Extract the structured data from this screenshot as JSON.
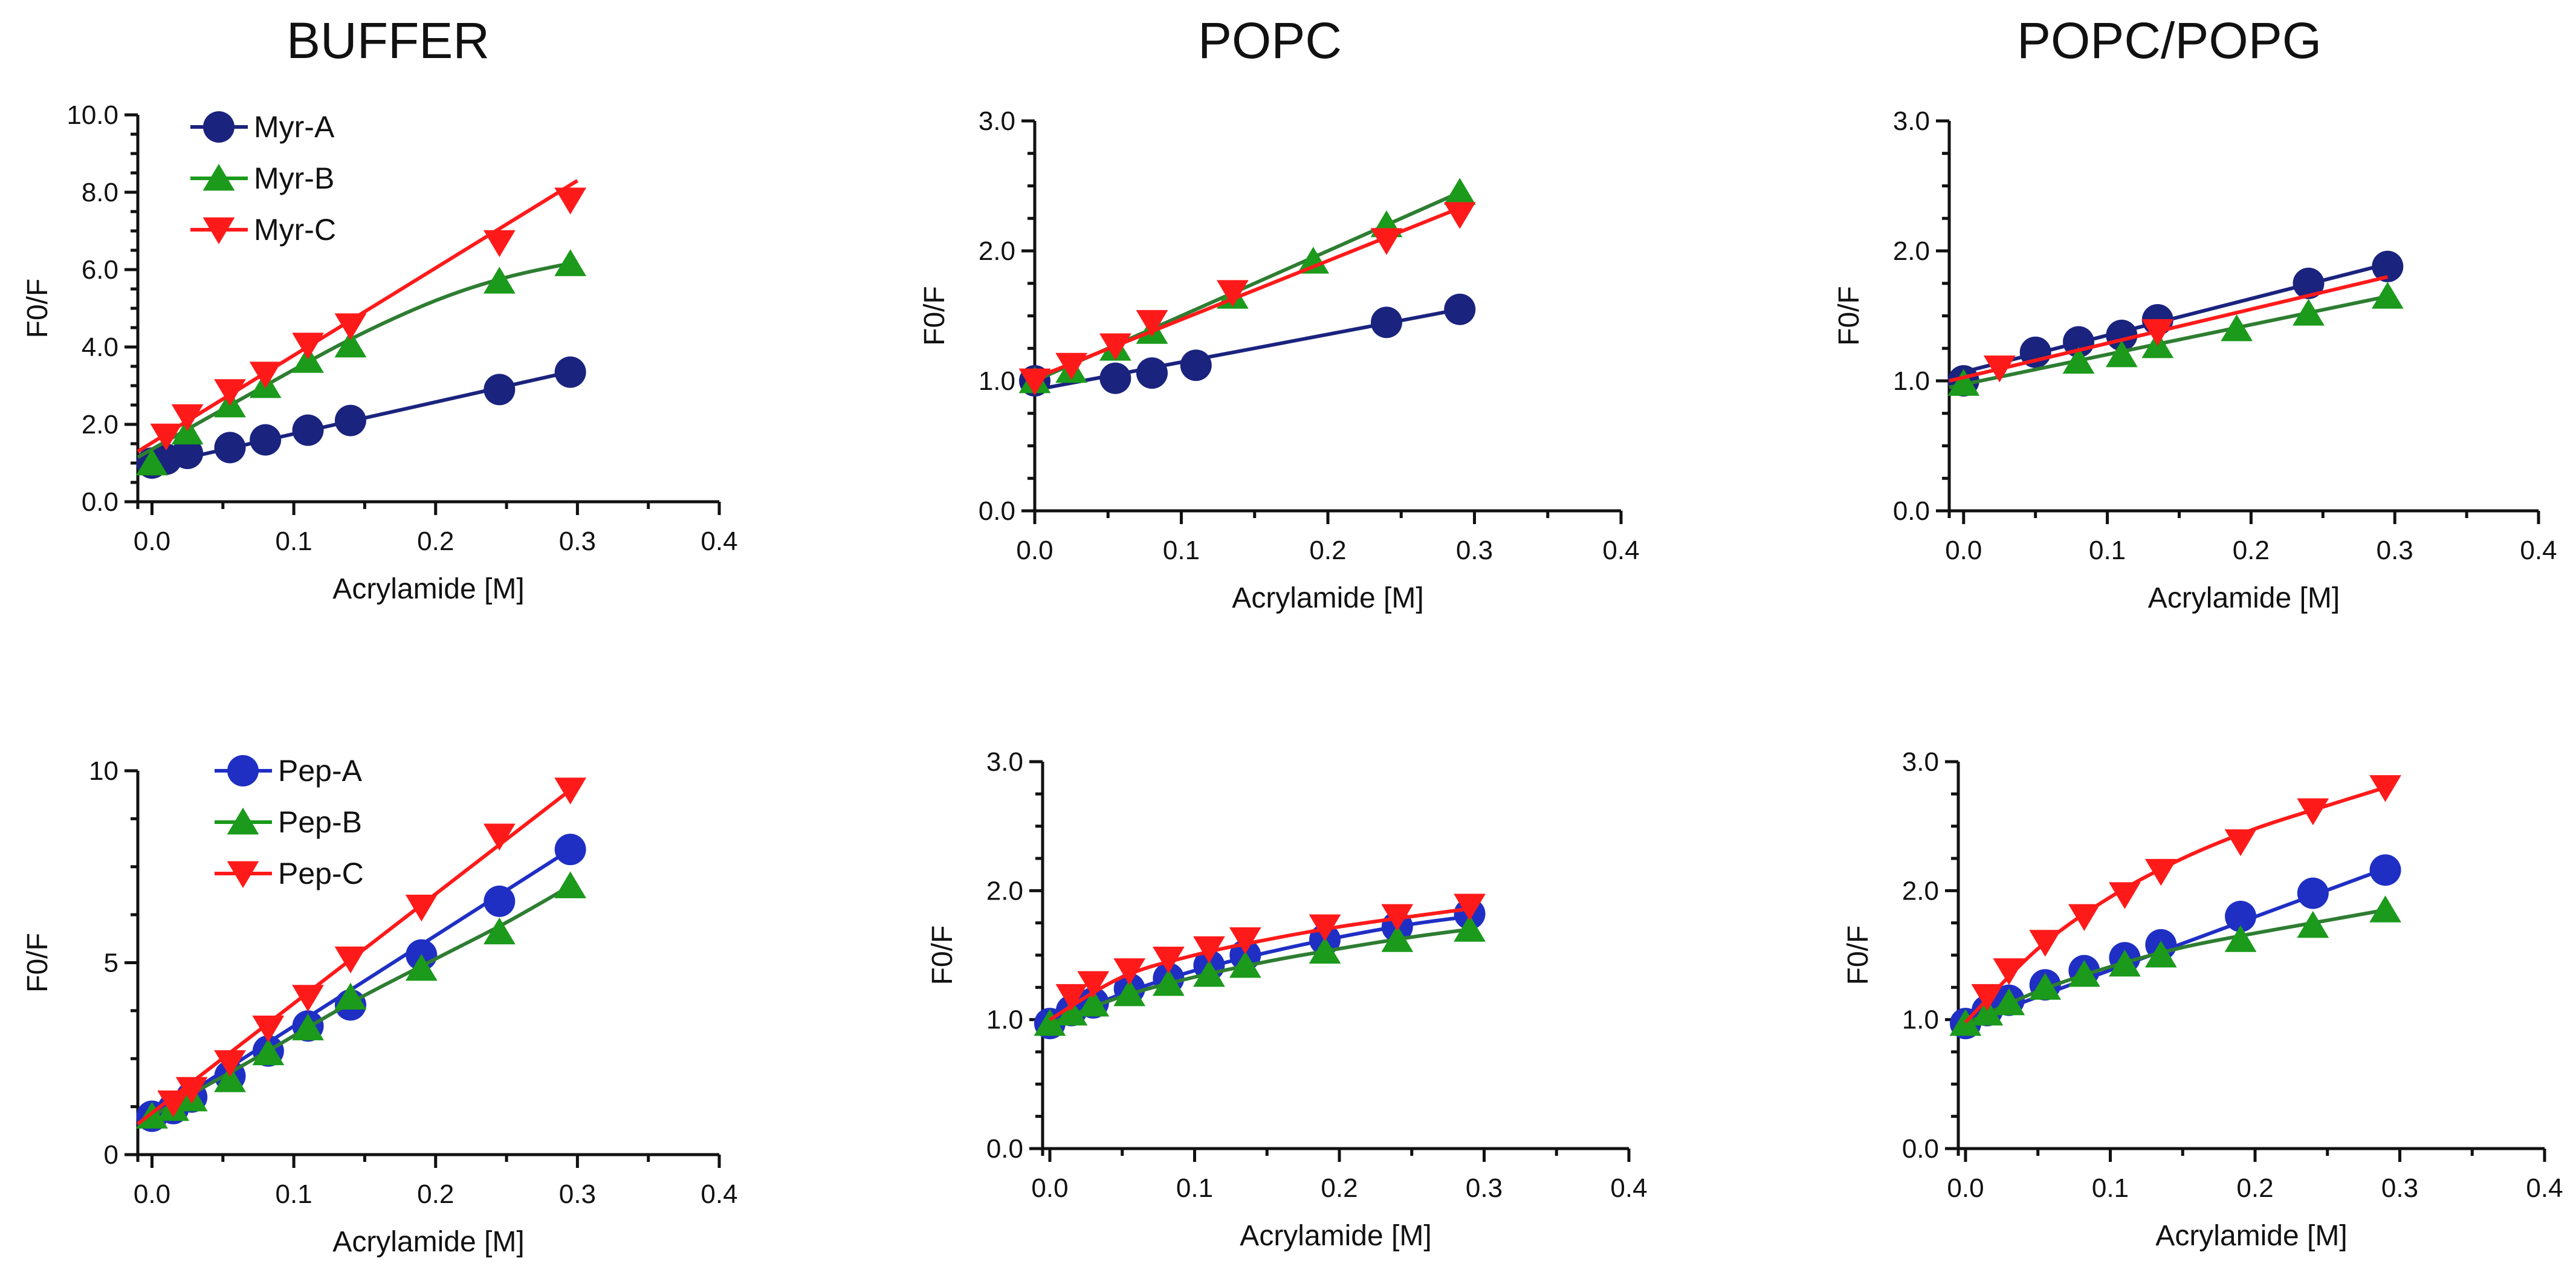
{
  "column_titles": [
    "BUFFER",
    "POPC",
    "POPC/POPG"
  ],
  "colors": {
    "A": "#1f2fc4",
    "A_dark": "#1a237e",
    "B": "#1b9a1b",
    "B_line": "#2e7d32",
    "C": "#ff1a1a"
  },
  "chart_data": [
    {
      "id": "buffer-myr",
      "type": "scatter",
      "xlabel": "Acrylamide [M]",
      "ylabel": "F0/F",
      "xlim": [
        -0.01,
        0.4
      ],
      "ylim": [
        0,
        10
      ],
      "xticks": [
        "0.0",
        "0.1",
        "0.2",
        "0.3",
        "0.4"
      ],
      "xtick_values": [
        0,
        0.1,
        0.2,
        0.3,
        0.4
      ],
      "yticks": [
        "0.0",
        "2.0",
        "4.0",
        "6.0",
        "8.0",
        "10.0"
      ],
      "ytick_values": [
        0,
        2,
        4,
        6,
        8,
        10
      ],
      "legend": [
        "Myr-A",
        "Myr-B",
        "Myr-C"
      ],
      "series": [
        {
          "name": "Myr-A",
          "marker": "circle",
          "color_key": "A_dark",
          "x": [
            0,
            0.01,
            0.025,
            0.055,
            0.08,
            0.11,
            0.14,
            0.245,
            0.295
          ],
          "y": [
            1.0,
            1.1,
            1.25,
            1.4,
            1.6,
            1.85,
            2.1,
            2.9,
            3.35
          ],
          "fit": {
            "kind": "linear",
            "x": [
              -0.01,
              0.3
            ],
            "y": [
              0.85,
              3.4
            ]
          }
        },
        {
          "name": "Myr-B",
          "marker": "triangle-up",
          "color_key": "B",
          "x": [
            0,
            0.025,
            0.055,
            0.08,
            0.11,
            0.14,
            0.245,
            0.295
          ],
          "y": [
            1.0,
            1.8,
            2.5,
            3.0,
            3.65,
            4.05,
            5.7,
            6.15
          ],
          "fit": {
            "kind": "curve",
            "x": [
              -0.01,
              0.07,
              0.14,
              0.2,
              0.25,
              0.3
            ],
            "y": [
              1.15,
              2.8,
              4.2,
              5.2,
              5.8,
              6.2
            ]
          }
        },
        {
          "name": "Myr-C",
          "marker": "triangle-down",
          "color_key": "C",
          "x": [
            0.01,
            0.025,
            0.055,
            0.08,
            0.11,
            0.14,
            0.245,
            0.295
          ],
          "y": [
            1.7,
            2.2,
            2.85,
            3.3,
            4.05,
            4.55,
            6.7,
            7.8
          ],
          "fit": {
            "kind": "linear",
            "x": [
              -0.01,
              0.3
            ],
            "y": [
              1.3,
              8.3
            ]
          }
        }
      ]
    },
    {
      "id": "popc-myr",
      "type": "scatter",
      "xlabel": "Acrylamide [M]",
      "ylabel": "F0/F",
      "xlim": [
        0,
        0.4
      ],
      "ylim": [
        0,
        3
      ],
      "xticks": [
        "0.0",
        "0.1",
        "0.2",
        "0.3",
        "0.4"
      ],
      "xtick_values": [
        0,
        0.1,
        0.2,
        0.3,
        0.4
      ],
      "yticks": [
        "0.0",
        "1.0",
        "2.0",
        "3.0"
      ],
      "ytick_values": [
        0,
        1,
        2,
        3
      ],
      "series": [
        {
          "name": "Myr-A",
          "marker": "circle",
          "color_key": "A_dark",
          "x": [
            0,
            0.055,
            0.08,
            0.11,
            0.24,
            0.29
          ],
          "y": [
            1.0,
            1.02,
            1.06,
            1.12,
            1.45,
            1.55
          ],
          "fit": {
            "kind": "linear",
            "x": [
              0,
              0.29
            ],
            "y": [
              0.93,
              1.55
            ]
          }
        },
        {
          "name": "Myr-B",
          "marker": "triangle-up",
          "color_key": "B",
          "x": [
            0,
            0.025,
            0.055,
            0.08,
            0.135,
            0.19,
            0.24,
            0.29
          ],
          "y": [
            1.0,
            1.08,
            1.25,
            1.38,
            1.65,
            1.92,
            2.2,
            2.45
          ],
          "fit": {
            "kind": "linear",
            "x": [
              0,
              0.29
            ],
            "y": [
              1.0,
              2.45
            ]
          }
        },
        {
          "name": "Myr-C",
          "marker": "triangle-down",
          "color_key": "C",
          "x": [
            0,
            0.025,
            0.055,
            0.08,
            0.135,
            0.24,
            0.29
          ],
          "y": [
            1.0,
            1.12,
            1.27,
            1.45,
            1.68,
            2.08,
            2.28
          ],
          "fit": {
            "kind": "linear",
            "x": [
              0,
              0.29
            ],
            "y": [
              1.02,
              2.33
            ]
          }
        }
      ]
    },
    {
      "id": "popcpopg-myr",
      "type": "scatter",
      "xlabel": "Acrylamide [M]",
      "ylabel": "F0/F",
      "xlim": [
        -0.01,
        0.4
      ],
      "ylim": [
        0,
        3
      ],
      "xticks": [
        "0.0",
        "0.1",
        "0.2",
        "0.3",
        "0.4"
      ],
      "xtick_values": [
        0,
        0.1,
        0.2,
        0.3,
        0.4
      ],
      "yticks": [
        "0.0",
        "1.0",
        "2.0",
        "3.0"
      ],
      "ytick_values": [
        0,
        1,
        2,
        3
      ],
      "series": [
        {
          "name": "Myr-A",
          "marker": "circle",
          "color_key": "A_dark",
          "x": [
            0,
            0.05,
            0.08,
            0.11,
            0.135,
            0.24,
            0.295
          ],
          "y": [
            1.0,
            1.22,
            1.3,
            1.35,
            1.47,
            1.75,
            1.88
          ],
          "fit": {
            "kind": "linear",
            "x": [
              -0.01,
              0.295
            ],
            "y": [
              1.04,
              1.9
            ]
          }
        },
        {
          "name": "Myr-B",
          "marker": "triangle-up",
          "color_key": "B",
          "x": [
            0,
            0.08,
            0.11,
            0.135,
            0.19,
            0.24,
            0.295
          ],
          "y": [
            0.98,
            1.15,
            1.2,
            1.27,
            1.4,
            1.52,
            1.65
          ],
          "fit": {
            "kind": "linear",
            "x": [
              -0.01,
              0.295
            ],
            "y": [
              0.95,
              1.65
            ]
          }
        },
        {
          "name": "Myr-C",
          "marker": "triangle-down",
          "color_key": "C",
          "x": [
            0.025,
            0.135
          ],
          "y": [
            1.1,
            1.38
          ],
          "fit": {
            "kind": "linear",
            "x": [
              -0.01,
              0.295
            ],
            "y": [
              1.0,
              1.8
            ]
          }
        }
      ]
    },
    {
      "id": "buffer-pep",
      "type": "scatter",
      "xlabel": "Acrylamide [M]",
      "ylabel": "F0/F",
      "xlim": [
        -0.01,
        0.4
      ],
      "ylim": [
        0,
        10
      ],
      "xticks": [
        "0.0",
        "0.1",
        "0.2",
        "0.3",
        "0.4"
      ],
      "xtick_values": [
        0,
        0.1,
        0.2,
        0.3,
        0.4
      ],
      "yticks": [
        "0",
        "5",
        "10"
      ],
      "ytick_values": [
        0,
        5,
        10
      ],
      "legend": [
        "Pep-A",
        "Pep-B",
        "Pep-C"
      ],
      "series": [
        {
          "name": "Pep-A",
          "marker": "circle",
          "color_key": "A",
          "x": [
            0,
            0.015,
            0.028,
            0.055,
            0.082,
            0.11,
            0.14,
            0.19,
            0.245,
            0.295
          ],
          "y": [
            1.0,
            1.2,
            1.5,
            2.05,
            2.7,
            3.35,
            3.9,
            5.2,
            6.6,
            7.95
          ],
          "fit": {
            "kind": "linear",
            "x": [
              -0.01,
              0.295
            ],
            "y": [
              0.75,
              7.95
            ]
          }
        },
        {
          "name": "Pep-B",
          "marker": "triangle-up",
          "color_key": "B",
          "x": [
            0,
            0.015,
            0.028,
            0.055,
            0.082,
            0.11,
            0.14,
            0.19,
            0.245,
            0.295
          ],
          "y": [
            1.0,
            1.2,
            1.45,
            1.95,
            2.65,
            3.3,
            4.1,
            4.85,
            5.8,
            7.0
          ],
          "fit": {
            "kind": "curve",
            "x": [
              -0.01,
              0.07,
              0.14,
              0.2,
              0.25,
              0.295
            ],
            "y": [
              0.8,
              2.45,
              3.95,
              5.1,
              6.05,
              7.0
            ]
          }
        },
        {
          "name": "Pep-C",
          "marker": "triangle-down",
          "color_key": "C",
          "x": [
            0.015,
            0.028,
            0.055,
            0.082,
            0.11,
            0.14,
            0.19,
            0.245,
            0.295
          ],
          "y": [
            1.35,
            1.7,
            2.4,
            3.3,
            4.1,
            5.1,
            6.45,
            8.3,
            9.5
          ],
          "fit": {
            "kind": "linear",
            "x": [
              -0.01,
              0.295
            ],
            "y": [
              0.8,
              9.5
            ]
          }
        }
      ]
    },
    {
      "id": "popc-pep",
      "type": "scatter",
      "xlabel": "Acrylamide [M]",
      "ylabel": "F0/F",
      "xlim": [
        -0.005,
        0.4
      ],
      "ylim": [
        0,
        3
      ],
      "xticks": [
        "0.0",
        "0.1",
        "0.2",
        "0.3",
        "0.4"
      ],
      "xtick_values": [
        0,
        0.1,
        0.2,
        0.3,
        0.4
      ],
      "yticks": [
        "0.0",
        "1.0",
        "2.0",
        "3.0"
      ],
      "ytick_values": [
        0,
        1,
        2,
        3
      ],
      "series": [
        {
          "name": "Pep-A",
          "marker": "circle",
          "color_key": "A",
          "x": [
            0,
            0.015,
            0.03,
            0.055,
            0.082,
            0.11,
            0.135,
            0.19,
            0.24,
            0.29
          ],
          "y": [
            0.97,
            1.07,
            1.13,
            1.24,
            1.32,
            1.42,
            1.5,
            1.62,
            1.72,
            1.82
          ],
          "fit": {
            "kind": "curve",
            "x": [
              0,
              0.05,
              0.1,
              0.15,
              0.2,
              0.25,
              0.29
            ],
            "y": [
              0.97,
              1.2,
              1.38,
              1.52,
              1.64,
              1.74,
              1.8
            ]
          }
        },
        {
          "name": "Pep-B",
          "marker": "triangle-up",
          "color_key": "B",
          "x": [
            0,
            0.015,
            0.03,
            0.055,
            0.082,
            0.11,
            0.135,
            0.19,
            0.24,
            0.29
          ],
          "y": [
            0.97,
            1.05,
            1.12,
            1.2,
            1.28,
            1.35,
            1.42,
            1.53,
            1.62,
            1.7
          ],
          "fit": {
            "kind": "curve",
            "x": [
              0,
              0.05,
              0.1,
              0.15,
              0.2,
              0.25,
              0.29
            ],
            "y": [
              0.97,
              1.18,
              1.33,
              1.45,
              1.55,
              1.64,
              1.7
            ]
          }
        },
        {
          "name": "Pep-C",
          "marker": "triangle-down",
          "color_key": "C",
          "x": [
            0.015,
            0.03,
            0.055,
            0.082,
            0.11,
            0.135,
            0.19,
            0.24,
            0.29
          ],
          "y": [
            1.18,
            1.28,
            1.38,
            1.47,
            1.55,
            1.62,
            1.72,
            1.8,
            1.88
          ],
          "fit": {
            "kind": "curve",
            "x": [
              0,
              0.05,
              0.1,
              0.15,
              0.2,
              0.25,
              0.29
            ],
            "y": [
              1.0,
              1.33,
              1.5,
              1.62,
              1.72,
              1.8,
              1.86
            ]
          }
        }
      ]
    },
    {
      "id": "popcpopg-pep",
      "type": "scatter",
      "xlabel": "Acrylamide [M]",
      "ylabel": "F0/F",
      "xlim": [
        -0.005,
        0.4
      ],
      "ylim": [
        0,
        3
      ],
      "xticks": [
        "0.0",
        "0.1",
        "0.2",
        "0.3",
        "0.4"
      ],
      "xtick_values": [
        0,
        0.1,
        0.2,
        0.3,
        0.4
      ],
      "yticks": [
        "0.0",
        "1.0",
        "2.0",
        "3.0"
      ],
      "ytick_values": [
        0,
        1,
        2,
        3
      ],
      "series": [
        {
          "name": "Pep-A",
          "marker": "circle",
          "color_key": "A",
          "x": [
            0,
            0.015,
            0.03,
            0.055,
            0.082,
            0.11,
            0.135,
            0.19,
            0.24,
            0.29
          ],
          "y": [
            0.97,
            1.07,
            1.15,
            1.27,
            1.38,
            1.48,
            1.58,
            1.8,
            1.98,
            2.16
          ],
          "fit": {
            "kind": "linear",
            "x": [
              0,
              0.29
            ],
            "y": [
              0.97,
              2.17
            ]
          }
        },
        {
          "name": "Pep-B",
          "marker": "triangle-up",
          "color_key": "B",
          "x": [
            0,
            0.015,
            0.03,
            0.055,
            0.082,
            0.11,
            0.135,
            0.19,
            0.24,
            0.29
          ],
          "y": [
            0.97,
            1.05,
            1.13,
            1.25,
            1.35,
            1.43,
            1.5,
            1.62,
            1.73,
            1.85
          ],
          "fit": {
            "kind": "curve",
            "x": [
              0,
              0.05,
              0.1,
              0.15,
              0.2,
              0.25,
              0.29
            ],
            "y": [
              0.97,
              1.22,
              1.41,
              1.56,
              1.67,
              1.77,
              1.85
            ]
          }
        },
        {
          "name": "Pep-C",
          "marker": "triangle-down",
          "color_key": "C",
          "x": [
            0.015,
            0.03,
            0.055,
            0.082,
            0.11,
            0.135,
            0.19,
            0.24,
            0.29
          ],
          "y": [
            1.18,
            1.38,
            1.6,
            1.8,
            1.97,
            2.15,
            2.38,
            2.62,
            2.8
          ],
          "fit": {
            "kind": "curve",
            "x": [
              0,
              0.05,
              0.1,
              0.15,
              0.2,
              0.25,
              0.29
            ],
            "y": [
              0.98,
              1.55,
              1.95,
              2.25,
              2.48,
              2.66,
              2.8
            ]
          }
        }
      ]
    }
  ]
}
